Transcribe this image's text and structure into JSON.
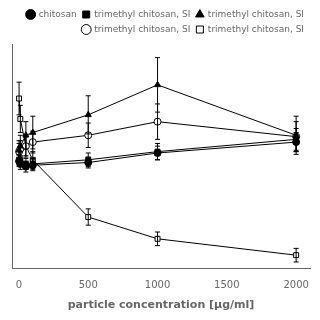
{
  "chart_data": {
    "type": "line",
    "xlabel": "particle concentration [μg/ml]",
    "x": [
      1,
      10,
      50,
      100,
      500,
      1000,
      2000
    ],
    "xlim": [
      -50,
      2100
    ],
    "xticks": [
      0,
      500,
      1000,
      1500,
      2000
    ],
    "ylim": [
      20,
      185
    ],
    "tick_labels": "x",
    "grid": false,
    "legend": "upper right",
    "series": [
      {
        "name": "chitosan",
        "color": "black",
        "marker": "circle",
        "line_style": "solid",
        "values": [
          99,
          97,
          95,
          96,
          98,
          105,
          113
        ],
        "yerr": [
          4,
          4,
          4,
          4,
          4,
          5,
          7
        ]
      },
      {
        "name": "trimethyl chitosan, SI",
        "color": "black",
        "marker": "square",
        "line_style": "solid",
        "values": [
          100,
          99,
          97,
          97,
          100,
          106,
          115
        ],
        "yerr": [
          4,
          4,
          4,
          4,
          5,
          6,
          8
        ]
      },
      {
        "name": "trimethyl chitosan, SI",
        "color": "black",
        "marker": "triangle",
        "line_style": "solid",
        "values": [
          107,
          110,
          118,
          120,
          133,
          155,
          118
        ],
        "yerr": [
          7,
          8,
          10,
          12,
          14,
          20,
          14
        ]
      },
      {
        "name": "trimethyl chitosan, SI",
        "color": "black",
        "marker": "circle-open",
        "line_style": "solid",
        "values": [
          106,
          108,
          110,
          113,
          118,
          128,
          117
        ],
        "yerr": [
          6,
          6,
          7,
          8,
          9,
          13,
          11
        ]
      },
      {
        "name": "trimethyl chitosan, SI",
        "color": "black",
        "marker": "square-open",
        "line_style": "solid",
        "values": [
          145,
          130,
          110,
          100,
          58,
          42,
          30
        ],
        "yerr": [
          12,
          10,
          8,
          6,
          6,
          5,
          5
        ]
      }
    ]
  }
}
